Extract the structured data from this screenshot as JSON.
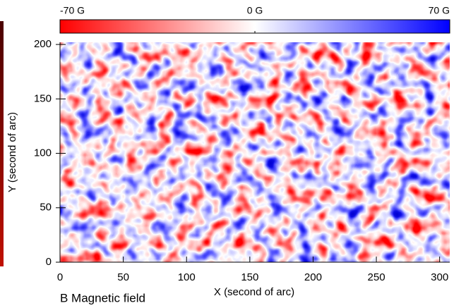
{
  "chart_data": {
    "type": "heatmap",
    "title": "B Magnetic field",
    "xlabel": "X (second of arc)",
    "ylabel": "Y (second of arc)",
    "xlim": [
      0,
      308
    ],
    "ylim": [
      0,
      202
    ],
    "xticks": [
      0,
      50,
      100,
      150,
      200,
      250,
      300
    ],
    "yticks": [
      0,
      50,
      100,
      150,
      200
    ],
    "colorbar": {
      "colors": [
        "#ff0000",
        "#ffffff",
        "#0000ff"
      ],
      "lim": [
        -70,
        70
      ],
      "ticks": [
        {
          "value": -70,
          "label": "-70 G"
        },
        {
          "value": 0,
          "label": "0 G"
        },
        {
          "value": 70,
          "label": "70 G"
        }
      ]
    }
  }
}
